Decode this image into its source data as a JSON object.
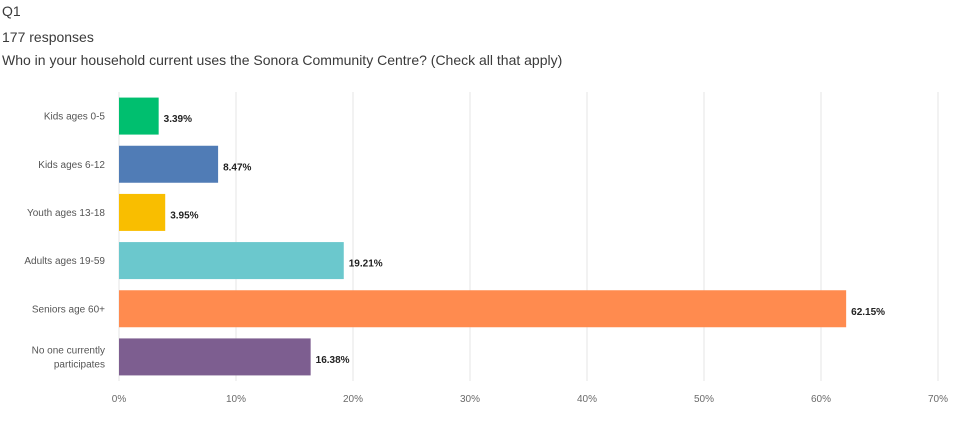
{
  "question_number": "Q1",
  "responses": "177 responses",
  "question_text": "Who in your household current uses the Sonora Community Centre? (Check all that apply)",
  "chart_data": {
    "type": "bar",
    "orientation": "horizontal",
    "categories": [
      [
        "Kids ages 0-5"
      ],
      [
        "Kids ages 6-12"
      ],
      [
        "Youth ages 13-18"
      ],
      [
        "Adults ages 19-59"
      ],
      [
        "Seniors age 60+"
      ],
      [
        "No one currently",
        "participates"
      ]
    ],
    "values": [
      3.39,
      8.47,
      3.95,
      19.21,
      62.15,
      16.38
    ],
    "value_labels": [
      "3.39%",
      "8.47%",
      "3.95%",
      "19.21%",
      "62.15%",
      "16.38%"
    ],
    "colors": [
      "#00bf6f",
      "#507cb6",
      "#f9be00",
      "#6bc8cd",
      "#ff8b4f",
      "#7d5e90"
    ],
    "xlim": [
      0,
      70
    ],
    "ticks": [
      0,
      10,
      20,
      30,
      40,
      50,
      60,
      70
    ],
    "tick_labels": [
      "0%",
      "10%",
      "20%",
      "30%",
      "40%",
      "50%",
      "60%",
      "70%"
    ],
    "grid": true,
    "gridline_color": "#e6e6e6"
  }
}
